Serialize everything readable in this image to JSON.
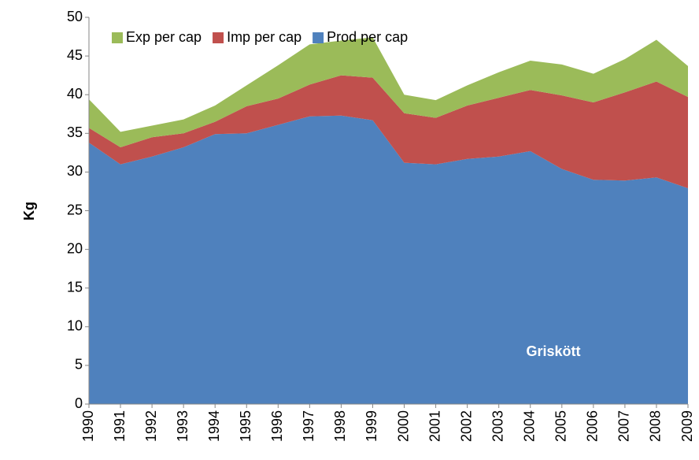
{
  "chart_data": {
    "type": "stacked_area",
    "categories": [
      "1990",
      "1991",
      "1992",
      "1993",
      "1994",
      "1995",
      "1996",
      "1997",
      "1998",
      "1999",
      "2000",
      "2001",
      "2002",
      "2003",
      "2004",
      "2005",
      "2006",
      "2007",
      "2008",
      "2009"
    ],
    "series": [
      {
        "name": "Prod per cap",
        "color": "#4f81bd",
        "values": [
          33.8,
          31,
          32,
          33.2,
          34.9,
          35,
          36.1,
          37.2,
          37.3,
          36.7,
          31.2,
          31,
          31.7,
          32,
          32.7,
          30.4,
          29,
          28.9,
          29.3,
          27.9
        ]
      },
      {
        "name": "Imp per cap",
        "color": "#c0504d",
        "values": [
          1.9,
          2.2,
          2.5,
          1.8,
          1.6,
          3.5,
          3.4,
          4.1,
          5.2,
          5.5,
          6.4,
          6,
          6.9,
          7.6,
          7.9,
          9.5,
          10,
          11.4,
          12.4,
          11.8
        ]
      },
      {
        "name": "Exp per cap",
        "color": "#9bbb59",
        "values": [
          3.7,
          2.0,
          1.5,
          1.8,
          2.1,
          2.7,
          4.3,
          5.2,
          4.5,
          5.2,
          2.4,
          2.3,
          2.6,
          3.3,
          3.8,
          4.0,
          3.7,
          4.3,
          5.4,
          4.0
        ]
      }
    ],
    "y_label": "Kg",
    "annotation": "Griskött",
    "ylim": [
      0,
      50
    ],
    "yticks": [
      0,
      5,
      10,
      15,
      20,
      25,
      30,
      35,
      40,
      45,
      50
    ],
    "grid": false,
    "legend": "top-left"
  }
}
